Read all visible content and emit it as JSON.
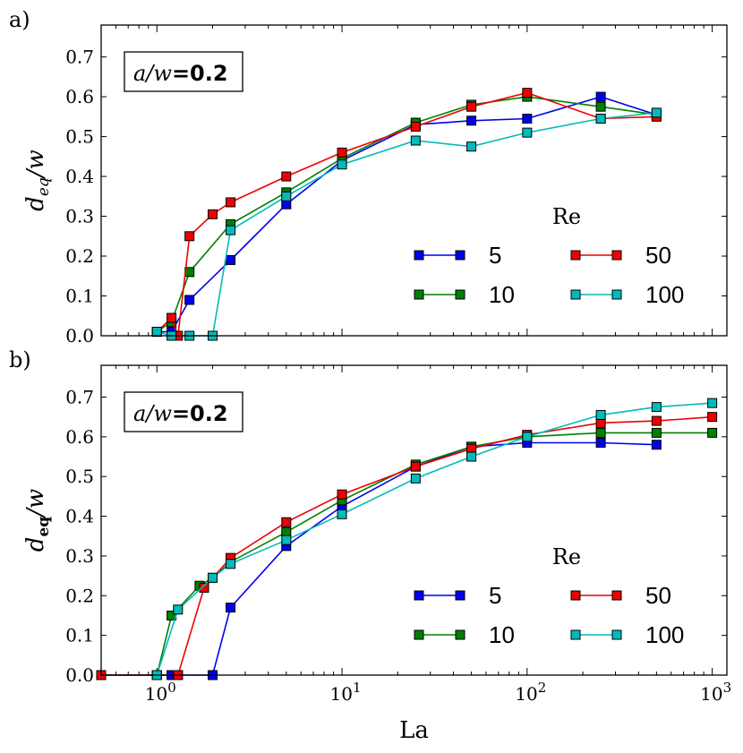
{
  "chart_data": [
    {
      "panel_label": "a)",
      "type": "line",
      "xscale": "log",
      "xlim": [
        0.5,
        1200
      ],
      "ylim": [
        0.0,
        0.78
      ],
      "yticks": [
        "0.0",
        "0.1",
        "0.2",
        "0.3",
        "0.4",
        "0.5",
        "0.6",
        "0.7"
      ],
      "xticks_shown": false,
      "ylabel_main": "d",
      "ylabel_sub": "eq",
      "ylabel_tail": "/w",
      "annotation": {
        "ratio": "a/w",
        "eq": "=0.2"
      },
      "legend_title": "Re",
      "legend_placement": "lower-right",
      "series": [
        {
          "name": "5",
          "color": "#0000ee",
          "x": [
            1,
            1.2,
            1.5,
            2.5,
            5,
            10,
            25,
            50,
            100,
            250,
            500
          ],
          "y": [
            0.01,
            0.01,
            0.09,
            0.19,
            0.33,
            0.44,
            0.53,
            0.54,
            0.545,
            0.6,
            0.555
          ]
        },
        {
          "name": "10",
          "color": "#008000",
          "x": [
            1,
            1.2,
            1.5,
            2.5,
            5,
            10,
            25,
            50,
            100,
            250,
            500
          ],
          "y": [
            0.01,
            0.035,
            0.16,
            0.28,
            0.36,
            0.445,
            0.535,
            0.58,
            0.6,
            0.575,
            0.555
          ]
        },
        {
          "name": "50",
          "color": "#ee0000",
          "x": [
            1,
            1.2,
            1.3,
            1.5,
            2,
            2.5,
            5,
            10,
            25,
            50,
            100,
            250,
            500
          ],
          "y": [
            0.01,
            0.045,
            0.0,
            0.25,
            0.305,
            0.335,
            0.4,
            0.46,
            0.525,
            0.575,
            0.61,
            0.545,
            0.55
          ]
        },
        {
          "name": "100",
          "color": "#00bbbb",
          "x": [
            1,
            1.2,
            1.5,
            2,
            2.5,
            5,
            10,
            25,
            50,
            100,
            250,
            500
          ],
          "y": [
            0.01,
            0.0,
            0.0,
            0.0,
            0.265,
            0.35,
            0.43,
            0.49,
            0.475,
            0.51,
            0.545,
            0.56
          ]
        }
      ]
    },
    {
      "panel_label": "b)",
      "type": "line",
      "xscale": "log",
      "xlim": [
        0.5,
        1200
      ],
      "ylim": [
        0.0,
        0.78
      ],
      "yticks": [
        "0.0",
        "0.1",
        "0.2",
        "0.3",
        "0.4",
        "0.5",
        "0.6",
        "0.7"
      ],
      "xticks_shown": true,
      "xtick_labels": [
        {
          "base": "10",
          "exp": "0"
        },
        {
          "base": "10",
          "exp": "1"
        },
        {
          "base": "10",
          "exp": "2"
        },
        {
          "base": "10",
          "exp": "3"
        }
      ],
      "xlabel": "La",
      "ylabel_main": "d",
      "ylabel_sub": "eq",
      "ylabel_tail": "/w",
      "annotation": {
        "ratio": "a/w",
        "eq": "=0.2"
      },
      "legend_title": "Re",
      "legend_placement": "lower-right",
      "series": [
        {
          "name": "5",
          "color": "#0000ee",
          "x": [
            0.5,
            1,
            1.2,
            1.3,
            2,
            2.5,
            5,
            10,
            25,
            50,
            100,
            250,
            500
          ],
          "y": [
            0.0,
            0.0,
            0.0,
            0.0,
            0.0,
            0.17,
            0.325,
            0.425,
            0.525,
            0.575,
            0.585,
            0.585,
            0.58
          ]
        },
        {
          "name": "10",
          "color": "#008000",
          "x": [
            0.5,
            1,
            1.2,
            1.7,
            2,
            2.5,
            5,
            10,
            25,
            50,
            100,
            250,
            500,
            1000
          ],
          "y": [
            0.0,
            0.0,
            0.15,
            0.225,
            0.245,
            0.285,
            0.36,
            0.44,
            0.53,
            0.575,
            0.6,
            0.61,
            0.61,
            0.61
          ]
        },
        {
          "name": "50",
          "color": "#ee0000",
          "x": [
            0.5,
            1,
            1.3,
            1.8,
            2.5,
            5,
            10,
            25,
            50,
            100,
            250,
            500,
            1000
          ],
          "y": [
            0.0,
            0.0,
            0.0,
            0.22,
            0.295,
            0.385,
            0.455,
            0.525,
            0.57,
            0.605,
            0.635,
            0.64,
            0.65
          ]
        },
        {
          "name": "100",
          "color": "#00bbbb",
          "x": [
            1,
            1.3,
            2,
            2.5,
            5,
            10,
            25,
            50,
            100,
            250,
            500,
            1000
          ],
          "y": [
            0.0,
            0.165,
            0.245,
            0.28,
            0.34,
            0.405,
            0.495,
            0.55,
            0.6,
            0.655,
            0.675,
            0.685
          ]
        }
      ]
    }
  ]
}
